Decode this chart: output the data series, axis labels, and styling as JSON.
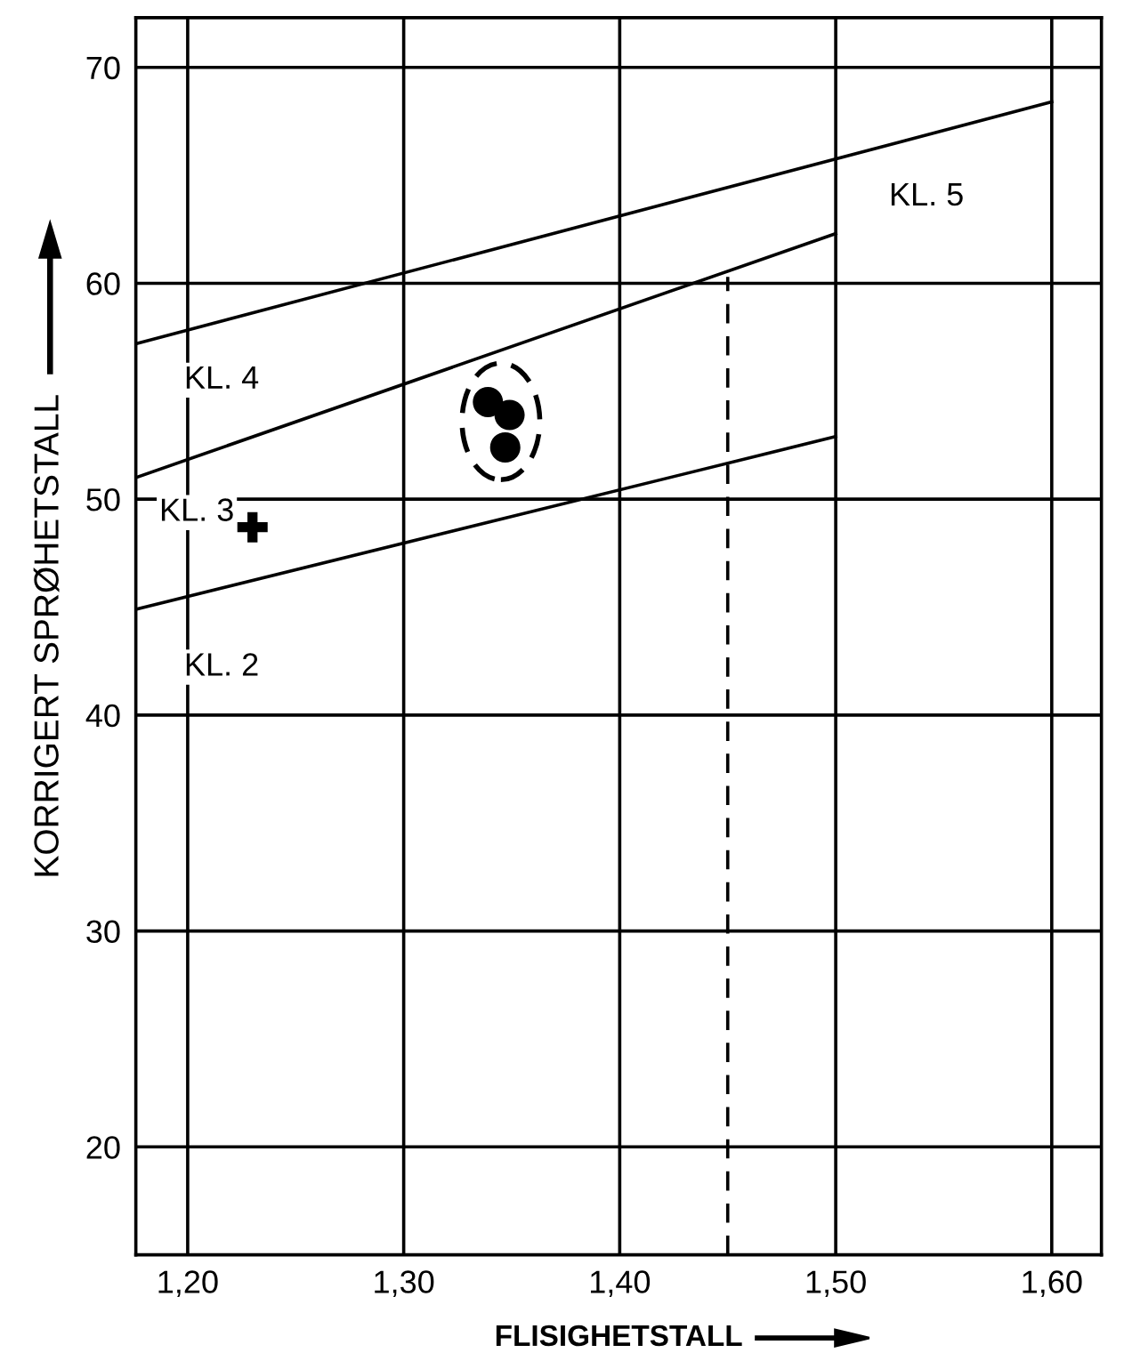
{
  "chart_data": {
    "type": "line",
    "xlabel": "FLISIGHETSTALL",
    "ylabel": "KORRIGERT SPRØHETSTALL",
    "xlim": [
      1.176,
      1.623
    ],
    "ylim": [
      15,
      72.3
    ],
    "xticks": [
      {
        "value": 1.2,
        "label": "1,20"
      },
      {
        "value": 1.3,
        "label": "1,30"
      },
      {
        "value": 1.4,
        "label": "1,40"
      },
      {
        "value": 1.5,
        "label": "1,50"
      },
      {
        "value": 1.6,
        "label": "1,60"
      }
    ],
    "yticks": [
      20,
      30,
      40,
      50,
      60,
      70
    ],
    "grid": true,
    "series": [
      {
        "color": "#000000",
        "x": [
          1.176,
          1.6
        ],
        "values": [
          57.2,
          68.4
        ],
        "line_style": "solid"
      },
      {
        "color": "#000000",
        "x": [
          1.176,
          1.5
        ],
        "values": [
          51.0,
          62.3
        ],
        "line_style": "solid"
      },
      {
        "color": "#000000",
        "x": [
          1.176,
          1.5
        ],
        "values": [
          44.9,
          52.9
        ],
        "line_style": "solid"
      },
      {
        "color": "#000000",
        "x": [
          1.45,
          1.45
        ],
        "values": [
          15,
          60.3
        ],
        "line_style": "dashed"
      },
      {
        "type": "scatter",
        "color": "#000000",
        "x": [
          1.339,
          1.349,
          1.347
        ],
        "values": [
          54.5,
          53.9,
          52.4
        ],
        "marker": "circle"
      },
      {
        "type": "scatter",
        "color": "#000000",
        "x": [
          1.23
        ],
        "values": [
          48.7
        ],
        "marker": "cross"
      }
    ],
    "annotations": [
      "KL. 4",
      "KL. 3",
      "KL. 2",
      "KL. 5"
    ]
  }
}
